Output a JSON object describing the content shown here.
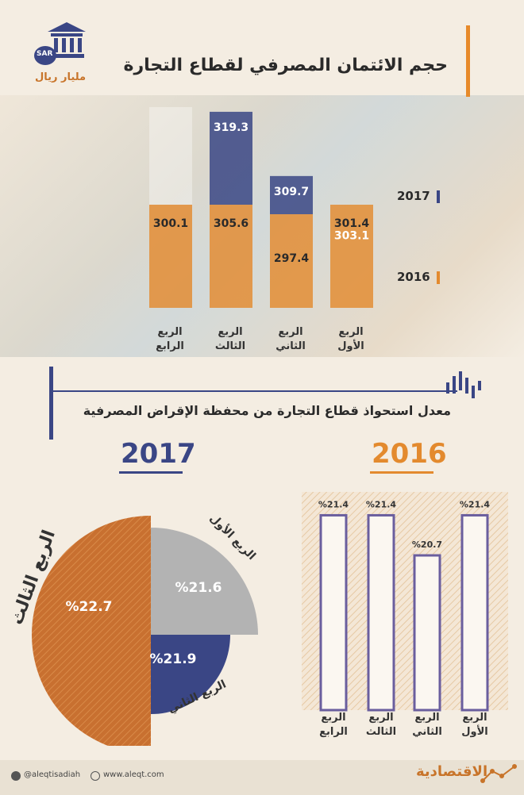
{
  "header": {
    "title": "حجم الائتمان المصرفي لقطاع التجارة",
    "unit": "مليار ريال",
    "currency_badge": "SAR",
    "bank_icon": "bank-icon"
  },
  "section2": {
    "title": "معدل استحواذ قطاع التجارة من محفظة الإقراض المصرفية"
  },
  "colors": {
    "y2017": "#3a4685",
    "y2016": "#e38a2e",
    "pie_q3": "#c87030",
    "pie_q1": "#b3b3b3",
    "pie_q2": "#3a4685"
  },
  "chart_data": [
    {
      "type": "bar",
      "title": "حجم الائتمان المصرفي لقطاع التجارة",
      "unit": "مليار ريال",
      "categories": [
        "الربع الأول",
        "الربع الثاني",
        "الربع الثالث",
        "الربع الرابع"
      ],
      "series": [
        {
          "name": "2017",
          "values": [
            303.1,
            309.7,
            319.3,
            null
          ]
        },
        {
          "name": "2016",
          "values": [
            301.4,
            297.4,
            305.6,
            300.1
          ]
        }
      ],
      "legend": [
        "2017",
        "2016"
      ],
      "labels": {
        "v2017": [
          "303.1",
          "309.7",
          "319.3"
        ],
        "v2016": [
          "301.4",
          "297.4",
          "305.6",
          "300.1"
        ]
      },
      "category_lines": [
        [
          "الربع",
          "الأول"
        ],
        [
          "الربع",
          "الثاني"
        ],
        [
          "الربع",
          "الثالث"
        ],
        [
          "الربع",
          "الرابع"
        ]
      ]
    },
    {
      "type": "bar",
      "title": "2016",
      "categories": [
        "الربع الأول",
        "الربع الثاني",
        "الربع الثالث",
        "الربع الرابع"
      ],
      "values": [
        21.4,
        20.7,
        21.4,
        21.4
      ],
      "labels": [
        "%21.4",
        "%20.7",
        "%21.4",
        "%21.4"
      ],
      "category_lines": [
        [
          "الربع",
          "الأول"
        ],
        [
          "الربع",
          "الثاني"
        ],
        [
          "الربع",
          "الثالث"
        ],
        [
          "الربع",
          "الرابع"
        ]
      ]
    },
    {
      "type": "pie",
      "title": "2017",
      "slices": [
        {
          "label": "الربع الأول",
          "value": 21.6,
          "text": "%21.6"
        },
        {
          "label": "الربع الثاني",
          "value": 21.9,
          "text": "%21.9"
        },
        {
          "label": "الربع الثالث",
          "value": 22.7,
          "text": "%22.7"
        }
      ]
    }
  ],
  "footer": {
    "twitter": "@aleqtisadiah",
    "website": "www.aleqt.com",
    "brand": "الاقتصادية"
  }
}
